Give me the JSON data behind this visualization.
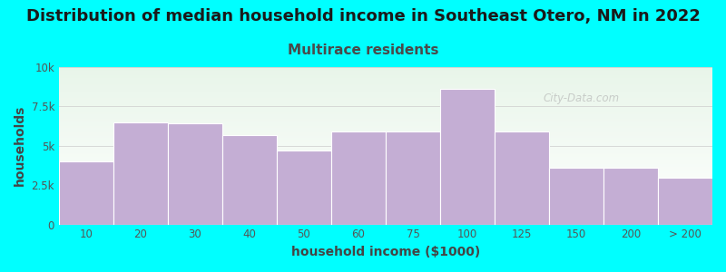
{
  "title": "Distribution of median household income in Southeast Otero, NM in 2022",
  "subtitle": "Multirace residents",
  "xlabel": "household income ($1000)",
  "ylabel": "households",
  "background_color": "#00FFFF",
  "bar_color": "#C4AED4",
  "bar_edge_color": "#ffffff",
  "categories": [
    "10",
    "20",
    "30",
    "40",
    "50",
    "60",
    "75",
    "100",
    "125",
    "150",
    "200",
    "> 200"
  ],
  "values": [
    4000,
    6500,
    6400,
    5700,
    4700,
    5900,
    5900,
    8600,
    5900,
    3600,
    3600,
    3000
  ],
  "bar_widths": [
    1,
    1,
    1,
    1,
    1,
    1,
    1,
    1,
    1,
    1,
    1,
    1
  ],
  "bar_lefts": [
    0,
    1,
    2,
    3,
    4,
    5,
    6,
    7,
    8,
    9,
    10,
    11
  ],
  "ylim": [
    0,
    10000
  ],
  "yticks": [
    0,
    2500,
    5000,
    7500,
    10000
  ],
  "ytick_labels": [
    "0",
    "2.5k",
    "5k",
    "7.5k",
    "10k"
  ],
  "title_fontsize": 13,
  "subtitle_fontsize": 11,
  "axis_label_fontsize": 10,
  "tick_fontsize": 8.5,
  "title_color": "#1a1a1a",
  "subtitle_color": "#4a4a4a",
  "axis_label_color": "#444444",
  "tick_color": "#555555",
  "watermark_text": "City-Data.com",
  "plot_bg_color_top": "#e8f5e9",
  "plot_bg_color_bottom": "#f8fff8"
}
